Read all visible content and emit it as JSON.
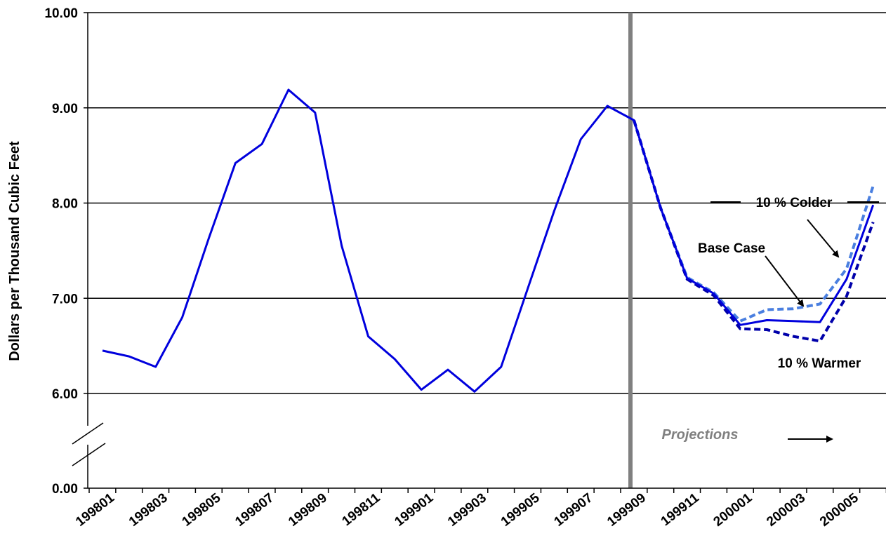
{
  "chart_data": {
    "type": "line",
    "ylabel": "Dollars per Thousand Cubic Feet",
    "y_ticks": [
      "10.00",
      "9.00",
      "8.00",
      "7.00",
      "6.00",
      "0.00"
    ],
    "ylim": [
      0,
      10
    ],
    "axis_break": true,
    "grid": true,
    "x_tick_labels": [
      "199801",
      "199803",
      "199805",
      "199807",
      "199809",
      "199811",
      "199901",
      "199903",
      "199905",
      "199907",
      "199909",
      "199911",
      "200001",
      "200003",
      "200005"
    ],
    "x": [
      "199801",
      "199802",
      "199803",
      "199804",
      "199805",
      "199806",
      "199807",
      "199808",
      "199809",
      "199810",
      "199811",
      "199812",
      "199901",
      "199902",
      "199903",
      "199904",
      "199905",
      "199906",
      "199907",
      "199908",
      "199909",
      "199910",
      "199911",
      "199912",
      "200001",
      "200002",
      "200003",
      "200004",
      "200005",
      "200006"
    ],
    "series": [
      {
        "name": "Base Case",
        "style": "solid",
        "color": "#0000dd",
        "values": [
          6.45,
          6.39,
          6.28,
          6.8,
          7.63,
          8.42,
          8.62,
          9.19,
          8.95,
          7.55,
          6.6,
          6.36,
          6.04,
          6.25,
          6.02,
          6.28,
          7.1,
          7.92,
          8.67,
          9.02,
          8.87,
          7.95,
          7.21,
          7.05,
          6.72,
          6.77,
          6.76,
          6.75,
          7.2,
          7.98
        ]
      },
      {
        "name": "10 % Colder",
        "style": "dashed",
        "color": "#4a7fe0",
        "values": [
          null,
          null,
          null,
          null,
          null,
          null,
          null,
          null,
          null,
          null,
          null,
          null,
          null,
          null,
          null,
          null,
          null,
          null,
          null,
          null,
          8.87,
          7.95,
          7.22,
          7.06,
          6.76,
          6.88,
          6.89,
          6.94,
          7.31,
          8.18
        ]
      },
      {
        "name": "10 % Warmer",
        "style": "dashed",
        "color": "#0000aa",
        "values": [
          null,
          null,
          null,
          null,
          null,
          null,
          null,
          null,
          null,
          null,
          null,
          null,
          null,
          null,
          null,
          null,
          null,
          null,
          null,
          null,
          8.87,
          7.95,
          7.2,
          7.03,
          6.68,
          6.67,
          6.6,
          6.55,
          7.02,
          7.8
        ]
      }
    ],
    "divider_at": "199909",
    "annotations": {
      "colder": "10 % Colder",
      "base": "Base Case",
      "warmer": "10 % Warmer",
      "projections": "Projections"
    }
  }
}
